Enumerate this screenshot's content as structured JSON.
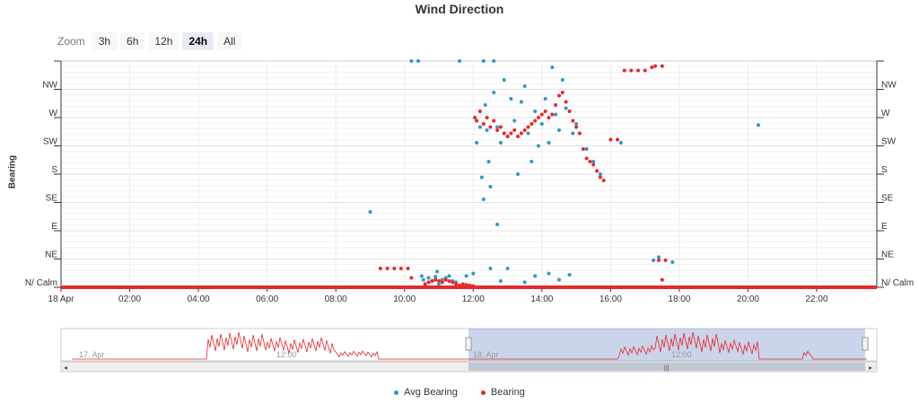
{
  "title": "Wind Direction",
  "zoom": {
    "label": "Zoom",
    "buttons": [
      "3h",
      "6h",
      "12h",
      "24h",
      "All"
    ],
    "active": "24h"
  },
  "navigator": {
    "labels": [
      "17. Apr",
      "12:00",
      "18. Apr",
      "12:00"
    ]
  },
  "chart_data": {
    "type": "scatter",
    "title": "Wind Direction",
    "ylabel": "Bearing",
    "xlabel": "",
    "x_tick_labels": [
      "18 Apr",
      "02:00",
      "04:00",
      "06:00",
      "08:00",
      "10:00",
      "12:00",
      "14:00",
      "16:00",
      "18:00",
      "20:00",
      "22:00"
    ],
    "x_ticks_hours": [
      0,
      2,
      4,
      6,
      8,
      10,
      12,
      14,
      16,
      18,
      20,
      22
    ],
    "xlim_hours": [
      0,
      23.75
    ],
    "y_tick_labels": [
      "N/ Calm",
      "NE",
      "E",
      "SE",
      "S",
      "SW",
      "W",
      "NW"
    ],
    "y_ticks_deg": [
      0,
      45,
      90,
      135,
      180,
      225,
      270,
      315
    ],
    "ylim": [
      0,
      360
    ],
    "grid": true,
    "legend_position": "bottom-center",
    "series": [
      {
        "name": "Avg Bearing",
        "color": "#2b9ac6",
        "points": [
          [
            9.0,
            120
          ],
          [
            10.5,
            18
          ],
          [
            10.55,
            12
          ],
          [
            10.7,
            15
          ],
          [
            10.8,
            10
          ],
          [
            10.9,
            17
          ],
          [
            11.1,
            12
          ],
          [
            11.2,
            15
          ],
          [
            11.3,
            18
          ],
          [
            11.4,
            10
          ],
          [
            11.5,
            8
          ],
          [
            12.0,
            22
          ],
          [
            12.1,
            230
          ],
          [
            12.2,
            255
          ],
          [
            12.25,
            175
          ],
          [
            12.3,
            140
          ],
          [
            12.35,
            290
          ],
          [
            12.4,
            250
          ],
          [
            12.45,
            200
          ],
          [
            12.5,
            160
          ],
          [
            12.6,
            310
          ],
          [
            12.7,
            255
          ],
          [
            12.8,
            230
          ],
          [
            12.9,
            330
          ],
          [
            13.0,
            240
          ],
          [
            13.1,
            300
          ],
          [
            13.2,
            265
          ],
          [
            13.3,
            180
          ],
          [
            13.4,
            295
          ],
          [
            13.5,
            320
          ],
          [
            13.6,
            245
          ],
          [
            13.7,
            200
          ],
          [
            13.8,
            280
          ],
          [
            13.9,
            225
          ],
          [
            14.0,
            260
          ],
          [
            14.1,
            300
          ],
          [
            14.2,
            230
          ],
          [
            14.3,
            350
          ],
          [
            14.4,
            275
          ],
          [
            14.5,
            250
          ],
          [
            14.6,
            330
          ],
          [
            14.7,
            285
          ],
          [
            14.9,
            245
          ],
          [
            15.0,
            260
          ],
          [
            15.3,
            220
          ],
          [
            15.5,
            200
          ],
          [
            15.7,
            180
          ],
          [
            12.7,
            100
          ],
          [
            12.5,
            30
          ],
          [
            13.8,
            18
          ],
          [
            14.2,
            22
          ],
          [
            14.8,
            20
          ],
          [
            16.3,
            230
          ],
          [
            17.25,
            43
          ],
          [
            17.4,
            48
          ],
          [
            17.8,
            40
          ],
          [
            20.3,
            258
          ],
          [
            11.8,
            18
          ],
          [
            12.8,
            10
          ],
          [
            13.5,
            8
          ],
          [
            14.5,
            12
          ],
          [
            10.95,
            25
          ],
          [
            12.3,
            360
          ],
          [
            11.0,
            5
          ],
          [
            13.0,
            30
          ],
          [
            11.6,
            360
          ],
          [
            10.2,
            360
          ],
          [
            10.4,
            360
          ],
          [
            12.6,
            365
          ]
        ]
      },
      {
        "name": "Bearing",
        "color": "#e8282b",
        "points": [
          [
            9.3,
            30
          ],
          [
            9.5,
            30
          ],
          [
            9.7,
            30
          ],
          [
            9.9,
            30
          ],
          [
            10.1,
            30
          ],
          [
            10.2,
            15
          ],
          [
            10.3,
            0
          ],
          [
            10.5,
            0
          ],
          [
            10.6,
            5
          ],
          [
            10.7,
            8
          ],
          [
            10.8,
            10
          ],
          [
            10.9,
            12
          ],
          [
            11.0,
            10
          ],
          [
            11.1,
            8
          ],
          [
            11.2,
            12
          ],
          [
            11.3,
            10
          ],
          [
            11.4,
            8
          ],
          [
            11.5,
            5
          ],
          [
            11.6,
            3
          ],
          [
            11.7,
            5
          ],
          [
            11.8,
            4
          ],
          [
            11.9,
            3
          ],
          [
            12.0,
            2
          ],
          [
            12.05,
            270
          ],
          [
            12.1,
            265
          ],
          [
            12.2,
            280
          ],
          [
            12.3,
            260
          ],
          [
            12.4,
            270
          ],
          [
            12.5,
            255
          ],
          [
            12.6,
            265
          ],
          [
            12.7,
            250
          ],
          [
            12.8,
            255
          ],
          [
            12.9,
            245
          ],
          [
            13.0,
            240
          ],
          [
            13.1,
            245
          ],
          [
            13.2,
            250
          ],
          [
            13.3,
            240
          ],
          [
            13.4,
            245
          ],
          [
            13.5,
            250
          ],
          [
            13.6,
            255
          ],
          [
            13.7,
            260
          ],
          [
            13.8,
            265
          ],
          [
            13.9,
            270
          ],
          [
            14.0,
            275
          ],
          [
            14.1,
            280
          ],
          [
            14.2,
            270
          ],
          [
            14.3,
            275
          ],
          [
            14.4,
            290
          ],
          [
            14.5,
            305
          ],
          [
            14.6,
            310
          ],
          [
            14.7,
            295
          ],
          [
            14.8,
            280
          ],
          [
            14.9,
            265
          ],
          [
            15.0,
            255
          ],
          [
            15.1,
            245
          ],
          [
            15.2,
            220
          ],
          [
            15.3,
            205
          ],
          [
            15.4,
            200
          ],
          [
            15.5,
            195
          ],
          [
            15.6,
            185
          ],
          [
            15.7,
            175
          ],
          [
            15.8,
            170
          ],
          [
            16.0,
            235
          ],
          [
            16.2,
            235
          ],
          [
            16.4,
            345
          ],
          [
            16.6,
            345
          ],
          [
            16.8,
            345
          ],
          [
            17.0,
            345
          ],
          [
            17.2,
            350
          ],
          [
            17.3,
            352
          ],
          [
            17.5,
            352
          ],
          [
            17.4,
            43
          ],
          [
            17.6,
            43
          ],
          [
            17.5,
            12
          ],
          [
            17.7,
            0
          ]
        ]
      }
    ],
    "baseline": {
      "from_hour": 0,
      "to_hour": 23.75,
      "value": 0
    }
  }
}
